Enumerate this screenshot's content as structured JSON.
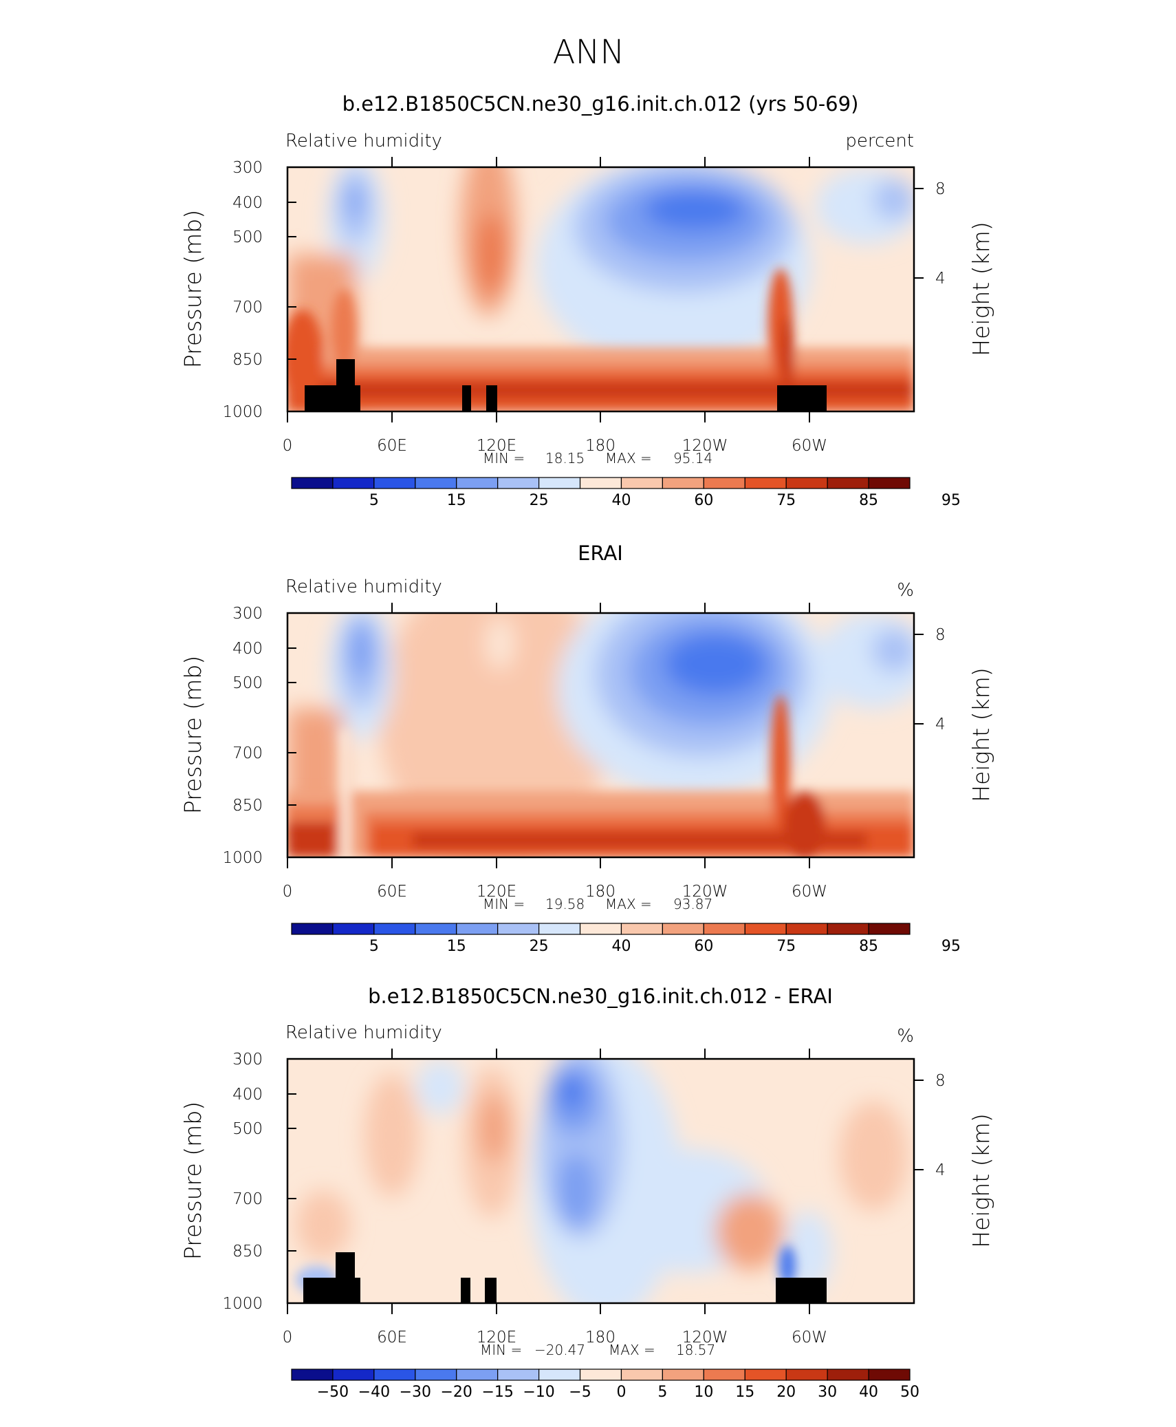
{
  "figure": {
    "title": "ANN"
  },
  "chart_data": [
    {
      "type": "heatmap",
      "title": "b.e12.B1850C5CN.ne30_g16.init.ch.012 (yrs 50-69)",
      "left_label": "Relative humidity",
      "right_label": "percent",
      "xlabel": "",
      "ylabel": "Pressure (mb)",
      "ylabel_right": "Height (km)",
      "x_ticks": [
        "0",
        "60E",
        "120E",
        "180",
        "120W",
        "60W"
      ],
      "y_ticks": [
        "300",
        "400",
        "500",
        "700",
        "850",
        "1000"
      ],
      "y_ticks_right": [
        "8",
        "4"
      ],
      "min_label": "MIN =",
      "min_value": "18.15",
      "max_label": "MAX =",
      "max_value": "95.14",
      "has_topography": true,
      "colorbar_labels": [
        "5",
        "15",
        "25",
        "40",
        "60",
        "75",
        "85",
        "95"
      ]
    },
    {
      "type": "heatmap",
      "title": "ERAI",
      "left_label": "Relative humidity",
      "right_label": "%",
      "xlabel": "",
      "ylabel": "Pressure (mb)",
      "ylabel_right": "Height (km)",
      "x_ticks": [
        "0",
        "60E",
        "120E",
        "180",
        "120W",
        "60W"
      ],
      "y_ticks": [
        "300",
        "400",
        "500",
        "700",
        "850",
        "1000"
      ],
      "y_ticks_right": [
        "8",
        "4"
      ],
      "min_label": "MIN =",
      "min_value": "19.58",
      "max_label": "MAX =",
      "max_value": "93.87",
      "has_topography": false,
      "colorbar_labels": [
        "5",
        "15",
        "25",
        "40",
        "60",
        "75",
        "85",
        "95"
      ]
    },
    {
      "type": "heatmap",
      "title": "b.e12.B1850C5CN.ne30_g16.init.ch.012 - ERAI",
      "left_label": "Relative humidity",
      "right_label": "%",
      "xlabel": "",
      "ylabel": "Pressure (mb)",
      "ylabel_right": "Height (km)",
      "x_ticks": [
        "0",
        "60E",
        "120E",
        "180",
        "120W",
        "60W"
      ],
      "y_ticks": [
        "300",
        "400",
        "500",
        "700",
        "850",
        "1000"
      ],
      "y_ticks_right": [
        "8",
        "4"
      ],
      "min_label": "MIN =",
      "min_value": "−20.47",
      "max_label": "MAX =",
      "max_value": "18.57",
      "has_topography": true,
      "colorbar_labels": [
        "−50",
        "−40",
        "−30",
        "−20",
        "−15",
        "−10",
        "−5",
        "0",
        "5",
        "10",
        "15",
        "20",
        "30",
        "40",
        "50"
      ]
    }
  ],
  "colors": {
    "palette": [
      "#0a0e8c",
      "#1428c8",
      "#2a55e6",
      "#4a79ee",
      "#7c9ff2",
      "#a9c1f6",
      "#d6e6fb",
      "#fde8d8",
      "#f9c8ad",
      "#f2a27e",
      "#ec7a50",
      "#e45427",
      "#c93815",
      "#9e1f0b",
      "#6f0a04"
    ],
    "topography": "#000000"
  }
}
